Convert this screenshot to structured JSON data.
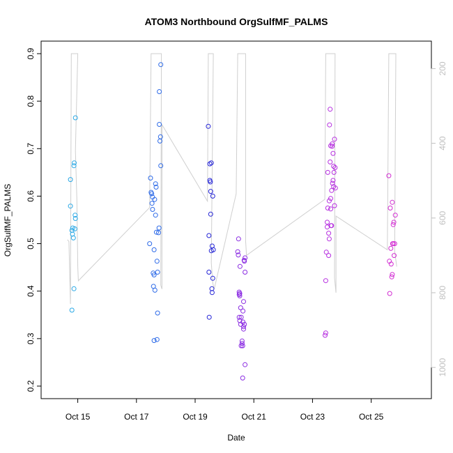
{
  "chart_data": {
    "type": "scatter",
    "title": "ATOM3 Northbound OrgSulfMF_PALMS",
    "xlabel": "Date",
    "ylabel": "OrgSulfMF_PALMS",
    "xlim": [
      14.25,
      26.6
    ],
    "ylim": [
      0.2,
      0.9
    ],
    "y2lim": [
      1050,
      160
    ],
    "xticks": [
      {
        "v": 15,
        "label": "Oct 15"
      },
      {
        "v": 17,
        "label": "Oct 17"
      },
      {
        "v": 19,
        "label": "Oct 19"
      },
      {
        "v": 21,
        "label": "Oct 21"
      },
      {
        "v": 23,
        "label": "Oct 23"
      },
      {
        "v": 25,
        "label": "Oct 25"
      }
    ],
    "yticks": [
      0.2,
      0.3,
      0.4,
      0.5,
      0.6,
      0.7,
      0.8,
      0.9
    ],
    "y2ticks": [
      200,
      400,
      600,
      800,
      1000
    ],
    "grid": false,
    "marker": "open-circle",
    "series": [
      {
        "color": "#29a8e6",
        "points": [
          [
            14.75,
            0.635
          ],
          [
            14.8,
            0.528
          ],
          [
            14.82,
            0.52
          ],
          [
            14.83,
            0.533
          ],
          [
            14.85,
            0.512
          ],
          [
            14.87,
            0.405
          ],
          [
            14.8,
            0.36
          ],
          [
            14.75,
            0.579
          ],
          [
            14.87,
            0.664
          ],
          [
            14.88,
            0.67
          ],
          [
            14.9,
            0.531
          ],
          [
            14.91,
            0.56
          ],
          [
            14.92,
            0.553
          ],
          [
            14.92,
            0.765
          ]
        ]
      },
      {
        "color": "#2e6be8",
        "points": [
          [
            17.45,
            0.5
          ],
          [
            17.48,
            0.638
          ],
          [
            17.5,
            0.608
          ],
          [
            17.52,
            0.605
          ],
          [
            17.53,
            0.585
          ],
          [
            17.55,
            0.598
          ],
          [
            17.55,
            0.572
          ],
          [
            17.57,
            0.438
          ],
          [
            17.58,
            0.41
          ],
          [
            17.6,
            0.434
          ],
          [
            17.6,
            0.487
          ],
          [
            17.62,
            0.593
          ],
          [
            17.63,
            0.402
          ],
          [
            17.6,
            0.296
          ],
          [
            17.65,
            0.626
          ],
          [
            17.67,
            0.619
          ],
          [
            17.65,
            0.56
          ],
          [
            17.68,
            0.524
          ],
          [
            17.7,
            0.463
          ],
          [
            17.7,
            0.298
          ],
          [
            17.72,
            0.44
          ],
          [
            17.72,
            0.354
          ],
          [
            17.75,
            0.523
          ],
          [
            17.77,
            0.533
          ],
          [
            17.78,
            0.751
          ],
          [
            17.78,
            0.82
          ],
          [
            17.8,
            0.716
          ],
          [
            17.82,
            0.725
          ],
          [
            17.83,
            0.877
          ],
          [
            17.83,
            0.664
          ]
        ]
      },
      {
        "color": "#2323d6",
        "points": [
          [
            19.45,
            0.747
          ],
          [
            19.47,
            0.517
          ],
          [
            19.47,
            0.44
          ],
          [
            19.48,
            0.345
          ],
          [
            19.5,
            0.668
          ],
          [
            19.5,
            0.633
          ],
          [
            19.52,
            0.63
          ],
          [
            19.53,
            0.61
          ],
          [
            19.53,
            0.562
          ],
          [
            19.55,
            0.67
          ],
          [
            19.55,
            0.485
          ],
          [
            19.57,
            0.405
          ],
          [
            19.58,
            0.397
          ],
          [
            19.58,
            0.495
          ],
          [
            19.6,
            0.6
          ],
          [
            19.6,
            0.427
          ],
          [
            19.62,
            0.487
          ]
        ]
      },
      {
        "color": "#8a2be2",
        "points": [
          [
            20.45,
            0.483
          ],
          [
            20.47,
            0.476
          ],
          [
            20.48,
            0.51
          ],
          [
            20.5,
            0.398
          ],
          [
            20.5,
            0.393
          ],
          [
            20.52,
            0.395
          ],
          [
            20.52,
            0.39
          ],
          [
            20.5,
            0.345
          ],
          [
            20.52,
            0.338
          ],
          [
            20.53,
            0.452
          ],
          [
            20.55,
            0.365
          ],
          [
            20.55,
            0.33
          ],
          [
            20.57,
            0.285
          ],
          [
            20.57,
            0.345
          ],
          [
            20.6,
            0.295
          ],
          [
            20.6,
            0.29
          ],
          [
            20.62,
            0.285
          ],
          [
            20.63,
            0.358
          ],
          [
            20.63,
            0.335
          ],
          [
            20.65,
            0.325
          ],
          [
            20.65,
            0.32
          ],
          [
            20.67,
            0.465
          ],
          [
            20.68,
            0.463
          ],
          [
            20.7,
            0.47
          ],
          [
            20.7,
            0.44
          ],
          [
            20.7,
            0.245
          ],
          [
            20.62,
            0.217
          ],
          [
            20.65,
            0.378
          ],
          [
            20.68,
            0.33
          ]
        ]
      },
      {
        "color": "#b62ee0",
        "points": [
          [
            23.45,
            0.312
          ],
          [
            23.43,
            0.307
          ],
          [
            23.45,
            0.422
          ],
          [
            23.47,
            0.482
          ],
          [
            23.5,
            0.545
          ],
          [
            23.5,
            0.535
          ],
          [
            23.52,
            0.575
          ],
          [
            23.52,
            0.65
          ],
          [
            23.55,
            0.522
          ],
          [
            23.55,
            0.475
          ],
          [
            23.57,
            0.59
          ],
          [
            23.57,
            0.51
          ],
          [
            23.58,
            0.75
          ],
          [
            23.6,
            0.783
          ],
          [
            23.6,
            0.672
          ],
          [
            23.62,
            0.706
          ],
          [
            23.62,
            0.595
          ],
          [
            23.62,
            0.573
          ],
          [
            23.63,
            0.538
          ],
          [
            23.65,
            0.538
          ],
          [
            23.65,
            0.612
          ],
          [
            23.67,
            0.71
          ],
          [
            23.67,
            0.705
          ],
          [
            23.68,
            0.627
          ],
          [
            23.7,
            0.633
          ],
          [
            23.7,
            0.69
          ],
          [
            23.72,
            0.663
          ],
          [
            23.72,
            0.62
          ],
          [
            23.73,
            0.65
          ],
          [
            23.75,
            0.72
          ],
          [
            23.75,
            0.58
          ],
          [
            23.77,
            0.66
          ],
          [
            23.78,
            0.617
          ]
        ]
      },
      {
        "color": "#d22ed2",
        "points": [
          [
            25.6,
            0.643
          ],
          [
            25.62,
            0.463
          ],
          [
            25.63,
            0.395
          ],
          [
            25.65,
            0.575
          ],
          [
            25.67,
            0.49
          ],
          [
            25.68,
            0.457
          ],
          [
            25.7,
            0.43
          ],
          [
            25.72,
            0.435
          ],
          [
            25.72,
            0.587
          ],
          [
            25.73,
            0.5
          ],
          [
            25.75,
            0.54
          ],
          [
            25.75,
            0.5
          ],
          [
            25.77,
            0.545
          ],
          [
            25.78,
            0.475
          ],
          [
            25.8,
            0.5
          ],
          [
            25.82,
            0.56
          ]
        ]
      }
    ],
    "pressure_line": {
      "color": "#cfcfcf",
      "right_axis_units": true,
      "points": [
        [
          14.65,
          658
        ],
        [
          14.7,
          663
        ],
        [
          14.75,
          830
        ],
        [
          14.78,
          160
        ],
        [
          14.8,
          160
        ],
        [
          14.83,
          160
        ],
        [
          14.86,
          160
        ],
        [
          14.88,
          160
        ],
        [
          14.9,
          160
        ],
        [
          14.92,
          160
        ],
        [
          14.95,
          160
        ],
        [
          14.97,
          160
        ],
        [
          15.0,
          160
        ],
        [
          14.92,
          420
        ],
        [
          14.97,
          550
        ],
        [
          15.0,
          730
        ],
        [
          15.02,
          768
        ],
        [
          17.45,
          572
        ],
        [
          17.5,
          160
        ],
        [
          17.52,
          160
        ],
        [
          17.55,
          160
        ],
        [
          17.58,
          160
        ],
        [
          17.6,
          160
        ],
        [
          17.62,
          160
        ],
        [
          17.65,
          160
        ],
        [
          17.68,
          160
        ],
        [
          17.7,
          160
        ],
        [
          17.72,
          160
        ],
        [
          17.75,
          160
        ],
        [
          17.78,
          160
        ],
        [
          17.8,
          160
        ],
        [
          17.83,
          160
        ],
        [
          17.85,
          160
        ],
        [
          17.83,
          780
        ],
        [
          17.87,
          790
        ],
        [
          17.87,
          350
        ],
        [
          19.42,
          555
        ],
        [
          19.45,
          160
        ],
        [
          19.48,
          160
        ],
        [
          19.5,
          160
        ],
        [
          19.52,
          160
        ],
        [
          19.55,
          160
        ],
        [
          19.58,
          160
        ],
        [
          19.6,
          160
        ],
        [
          19.62,
          160
        ],
        [
          19.55,
          720
        ],
        [
          19.6,
          774
        ],
        [
          19.65,
          790
        ],
        [
          20.4,
          535
        ],
        [
          20.45,
          160
        ],
        [
          20.47,
          160
        ],
        [
          20.5,
          160
        ],
        [
          20.52,
          160
        ],
        [
          20.55,
          160
        ],
        [
          20.57,
          160
        ],
        [
          20.6,
          160
        ],
        [
          20.62,
          160
        ],
        [
          20.65,
          160
        ],
        [
          20.67,
          160
        ],
        [
          20.7,
          160
        ],
        [
          20.72,
          160
        ],
        [
          20.72,
          660
        ],
        [
          20.75,
          700
        ],
        [
          23.42,
          550
        ],
        [
          23.45,
          160
        ],
        [
          23.48,
          160
        ],
        [
          23.5,
          160
        ],
        [
          23.52,
          160
        ],
        [
          23.55,
          160
        ],
        [
          23.57,
          160
        ],
        [
          23.6,
          160
        ],
        [
          23.62,
          160
        ],
        [
          23.65,
          160
        ],
        [
          23.68,
          160
        ],
        [
          23.7,
          160
        ],
        [
          23.72,
          160
        ],
        [
          23.75,
          160
        ],
        [
          23.77,
          160
        ],
        [
          23.75,
          760
        ],
        [
          23.8,
          800
        ],
        [
          23.8,
          595
        ],
        [
          25.55,
          685
        ],
        [
          25.6,
          160
        ],
        [
          25.63,
          160
        ],
        [
          25.65,
          160
        ],
        [
          25.67,
          160
        ],
        [
          25.7,
          160
        ],
        [
          25.72,
          160
        ],
        [
          25.75,
          160
        ],
        [
          25.77,
          160
        ],
        [
          25.8,
          160
        ],
        [
          25.82,
          160
        ],
        [
          25.84,
          160
        ],
        [
          25.8,
          690
        ],
        [
          25.87,
          730
        ]
      ]
    }
  }
}
